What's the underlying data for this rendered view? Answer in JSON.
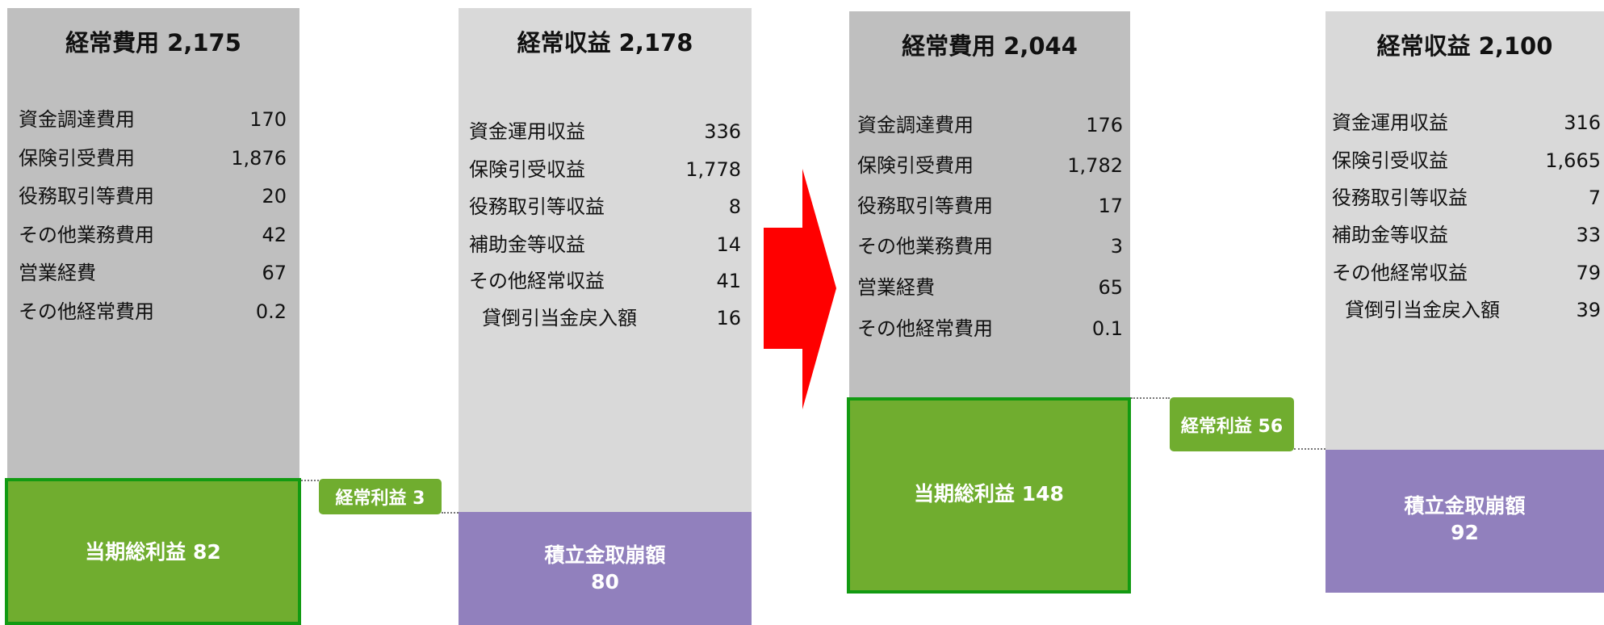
{
  "panels": [
    {
      "title": "経常費用 2,175",
      "items": [
        {
          "label": "資金調達費用",
          "value": "170"
        },
        {
          "label": "保険引受費用",
          "value": "1,876"
        },
        {
          "label": "役務取引等費用",
          "value": "20"
        },
        {
          "label": "その他業務費用",
          "value": "42"
        },
        {
          "label": "営業経費",
          "value": "67"
        },
        {
          "label": "その他経常費用",
          "value": "0.2"
        }
      ],
      "bottom": {
        "label": "当期総利益  82"
      }
    },
    {
      "title": "経常収益 2,178",
      "items": [
        {
          "label": "資金運用収益",
          "value": "336"
        },
        {
          "label": "保険引受収益",
          "value": "1,778"
        },
        {
          "label": "役務取引等収益",
          "value": "8"
        },
        {
          "label": "補助金等収益",
          "value": "14"
        },
        {
          "label": "その他経常収益",
          "value": "41"
        },
        {
          "label": "貸倒引当金戻入額",
          "value": "16"
        }
      ],
      "bottom": {
        "label": "積立金取崩額",
        "value": "80"
      }
    },
    {
      "title": "経常費用 2,044",
      "items": [
        {
          "label": "資金調達費用",
          "value": "176"
        },
        {
          "label": "保険引受費用",
          "value": "1,782"
        },
        {
          "label": "役務取引等費用",
          "value": "17"
        },
        {
          "label": "その他業務費用",
          "value": "3"
        },
        {
          "label": "営業経費",
          "value": "65"
        },
        {
          "label": "その他経常費用",
          "value": "0.1"
        }
      ],
      "bottom": {
        "label": "当期総利益  148"
      }
    },
    {
      "title": "経常収益 2,100",
      "items": [
        {
          "label": "資金運用収益",
          "value": "316"
        },
        {
          "label": "保険引受収益",
          "value": "1,665"
        },
        {
          "label": "役務取引等収益",
          "value": "7"
        },
        {
          "label": "補助金等収益",
          "value": "33"
        },
        {
          "label": "その他経常収益",
          "value": "79"
        },
        {
          "label": "貸倒引当金戻入額",
          "value": "39"
        }
      ],
      "bottom": {
        "label": "積立金取崩額",
        "value": "92"
      }
    }
  ],
  "tags": [
    "経常利益  3",
    "経常利益  56"
  ]
}
